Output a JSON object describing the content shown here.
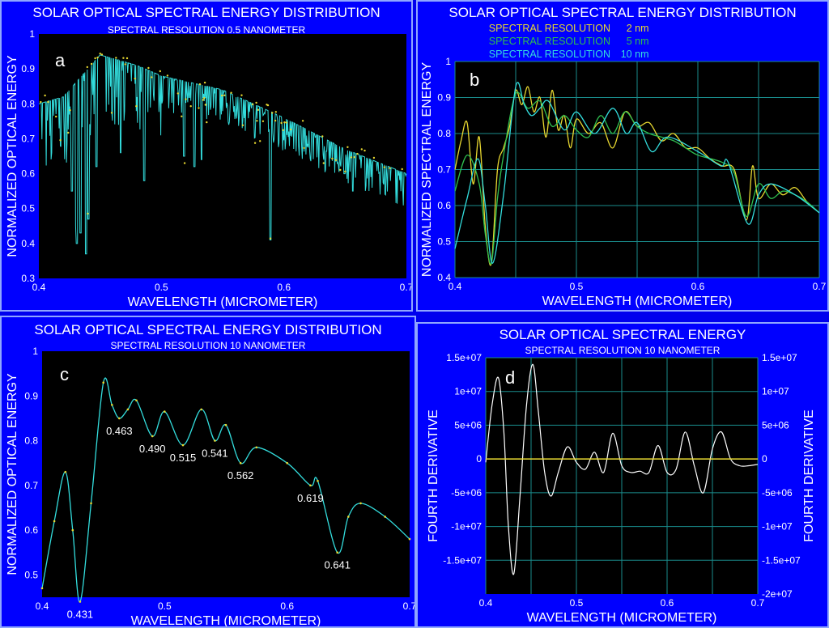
{
  "colors": {
    "background": "#0000ff",
    "plot_bg": "#000000",
    "grid": "#1a8d8d",
    "trace_cyan": "#33dddd",
    "trace_yellow": "#e8d830",
    "trace_green": "#2fbf4f",
    "trace_white": "#ffffff",
    "text": "#ffffff"
  },
  "panels": {
    "a": {
      "title": "SOLAR OPTICAL SPECTRAL ENERGY DISTRIBUTION",
      "subtitle": "SPECTRAL RESOLUTION 0.5 NANOMETER",
      "letter": "a"
    },
    "b": {
      "title": "SOLAR OPTICAL SPECTRAL ENERGY DISTRIBUTION",
      "subtitle": "",
      "letter": "b",
      "legend": [
        {
          "name": "SPECTRAL RESOLUTION",
          "res": "2 nm",
          "color": "#e8d830"
        },
        {
          "name": "SPECTRAL RESOLUTION",
          "res": "5 nm",
          "color": "#2fbf4f"
        },
        {
          "name": "SPECTRAL RESOLUTION",
          "res": "10 nm",
          "color": "#33dddd"
        }
      ]
    },
    "c": {
      "title": "SOLAR OPTICAL SPECTRAL ENERGY DISTRIBUTION",
      "subtitle": "SPECTRAL RESOLUTION 10 NANOMETER",
      "letter": "c"
    },
    "d": {
      "title": "SOLAR OPTICAL SPECTRAL ENERGY",
      "subtitle": "SPECTRAL RESOLUTION 10 NANOMETER",
      "letter": "d"
    }
  },
  "chart_data": [
    {
      "id": "a",
      "type": "line",
      "title": "SOLAR OPTICAL SPECTRAL ENERGY DISTRIBUTION",
      "subtitle": "SPECTRAL RESOLUTION 0.5 NANOMETER",
      "xlabel": "WAVELENGTH (MICROMETER)",
      "ylabel": "NORMALIZED OPTICAL ENERGY",
      "xlim": [
        0.4,
        0.7
      ],
      "ylim": [
        0.3,
        1.0
      ],
      "xticks": [
        "0.4",
        "0.5",
        "0.6",
        "0.7"
      ],
      "yticks": [
        "0.3",
        "0.4",
        "0.5",
        "0.6",
        "0.7",
        "0.8",
        "0.9",
        "1"
      ],
      "grid": false,
      "series": [
        {
          "color": "#33dddd",
          "envelope": [
            [
              0.4,
              0.8
            ],
            [
              0.42,
              0.82
            ],
            [
              0.44,
              0.9
            ],
            [
              0.45,
              0.94
            ],
            [
              0.46,
              0.93
            ],
            [
              0.48,
              0.91
            ],
            [
              0.5,
              0.88
            ],
            [
              0.55,
              0.84
            ],
            [
              0.6,
              0.76
            ],
            [
              0.65,
              0.67
            ],
            [
              0.7,
              0.6
            ]
          ],
          "absorption_lines": [
            [
              0.431,
              0.4
            ],
            [
              0.434,
              0.43
            ],
            [
              0.4385,
              0.37
            ],
            [
              0.4405,
              0.47
            ],
            [
              0.427,
              0.55
            ],
            [
              0.4305,
              0.45
            ],
            [
              0.486,
              0.58
            ],
            [
              0.4471,
              0.62
            ],
            [
              0.4668,
              0.66
            ],
            [
              0.5184,
              0.65
            ],
            [
              0.527,
              0.62
            ],
            [
              0.5328,
              0.64
            ],
            [
              0.589,
              0.41
            ],
            [
              0.6563,
              0.55
            ],
            [
              0.6495,
              0.61
            ],
            [
              0.6495,
              0.6
            ]
          ]
        }
      ]
    },
    {
      "id": "b",
      "type": "line",
      "title": "SOLAR OPTICAL SPECTRAL ENERGY DISTRIBUTION",
      "xlabel": "WAVELENGTH (MICROMETER)",
      "ylabel": "NORMALIZED SPECTRAL ENERGY",
      "xlim": [
        0.4,
        0.7
      ],
      "ylim": [
        0.4,
        1.0
      ],
      "xticks": [
        "0.4",
        "0.5",
        "0.6",
        "0.7"
      ],
      "yticks": [
        "0.4",
        "0.5",
        "0.6",
        "0.7",
        "0.8",
        "0.9",
        "1"
      ],
      "grid": true,
      "legend": "top",
      "series": [
        {
          "name": "SPECTRAL RESOLUTION 2 nm",
          "color": "#e8d830",
          "x": [
            0.4,
            0.405,
            0.41,
            0.415,
            0.42,
            0.425,
            0.43,
            0.435,
            0.44,
            0.445,
            0.45,
            0.455,
            0.46,
            0.465,
            0.47,
            0.475,
            0.48,
            0.485,
            0.49,
            0.495,
            0.5,
            0.51,
            0.52,
            0.53,
            0.54,
            0.55,
            0.56,
            0.57,
            0.58,
            0.59,
            0.6,
            0.61,
            0.62,
            0.63,
            0.64,
            0.645,
            0.65,
            0.66,
            0.67,
            0.68,
            0.69,
            0.7
          ],
          "y": [
            0.7,
            0.78,
            0.83,
            0.66,
            0.79,
            0.54,
            0.44,
            0.7,
            0.76,
            0.82,
            0.92,
            0.88,
            0.93,
            0.86,
            0.9,
            0.79,
            0.92,
            0.81,
            0.85,
            0.76,
            0.84,
            0.8,
            0.83,
            0.76,
            0.86,
            0.82,
            0.83,
            0.78,
            0.8,
            0.76,
            0.76,
            0.73,
            0.71,
            0.7,
            0.56,
            0.71,
            0.62,
            0.66,
            0.63,
            0.65,
            0.61,
            0.58
          ]
        },
        {
          "name": "SPECTRAL RESOLUTION 5 nm",
          "color": "#2fbf4f",
          "x": [
            0.4,
            0.41,
            0.42,
            0.425,
            0.43,
            0.435,
            0.44,
            0.45,
            0.46,
            0.47,
            0.48,
            0.49,
            0.5,
            0.51,
            0.52,
            0.53,
            0.54,
            0.55,
            0.56,
            0.57,
            0.58,
            0.59,
            0.6,
            0.62,
            0.63,
            0.64,
            0.65,
            0.66,
            0.67,
            0.68,
            0.69,
            0.7
          ],
          "y": [
            0.64,
            0.74,
            0.66,
            0.52,
            0.44,
            0.62,
            0.74,
            0.91,
            0.87,
            0.89,
            0.82,
            0.85,
            0.81,
            0.79,
            0.85,
            0.8,
            0.86,
            0.82,
            0.8,
            0.79,
            0.78,
            0.76,
            0.74,
            0.72,
            0.69,
            0.57,
            0.66,
            0.62,
            0.64,
            0.63,
            0.61,
            0.58
          ]
        },
        {
          "name": "SPECTRAL RESOLUTION 10 nm",
          "color": "#33dddd",
          "x": [
            0.4,
            0.41,
            0.419,
            0.425,
            0.431,
            0.44,
            0.45,
            0.457,
            0.463,
            0.47,
            0.477,
            0.49,
            0.5,
            0.515,
            0.53,
            0.541,
            0.55,
            0.562,
            0.575,
            0.6,
            0.619,
            0.625,
            0.641,
            0.65,
            0.66,
            0.68,
            0.7
          ],
          "y": [
            0.48,
            0.62,
            0.73,
            0.6,
            0.44,
            0.63,
            0.93,
            0.88,
            0.85,
            0.87,
            0.89,
            0.81,
            0.86,
            0.8,
            0.87,
            0.8,
            0.83,
            0.75,
            0.79,
            0.75,
            0.71,
            0.72,
            0.55,
            0.63,
            0.66,
            0.63,
            0.58
          ]
        }
      ]
    },
    {
      "id": "c",
      "type": "line",
      "title": "SOLAR OPTICAL SPECTRAL ENERGY DISTRIBUTION",
      "subtitle": "SPECTRAL RESOLUTION 10 NANOMETER",
      "xlabel": "WAVELENGTH (MICROMETER)",
      "ylabel": "NORMALIZED OPTICAL ENERGY",
      "xlim": [
        0.4,
        0.7
      ],
      "ylim": [
        0.45,
        1.0
      ],
      "xticks": [
        "0.4",
        "0.5",
        "0.6",
        "0.7"
      ],
      "yticks": [
        "0.5",
        "0.6",
        "0.7",
        "0.8",
        "0.9",
        "1"
      ],
      "grid": false,
      "series": [
        {
          "color": "#33dddd",
          "x": [
            0.4,
            0.41,
            0.419,
            0.425,
            0.431,
            0.44,
            0.45,
            0.457,
            0.463,
            0.47,
            0.477,
            0.49,
            0.5,
            0.515,
            0.53,
            0.541,
            0.55,
            0.562,
            0.575,
            0.6,
            0.619,
            0.625,
            0.641,
            0.65,
            0.66,
            0.68,
            0.7
          ],
          "y": [
            0.47,
            0.62,
            0.73,
            0.6,
            0.44,
            0.66,
            0.93,
            0.88,
            0.85,
            0.87,
            0.89,
            0.81,
            0.865,
            0.79,
            0.87,
            0.8,
            0.835,
            0.75,
            0.785,
            0.75,
            0.7,
            0.71,
            0.55,
            0.63,
            0.66,
            0.63,
            0.58
          ]
        }
      ],
      "annotations": [
        {
          "label": "0.431",
          "x": 0.431,
          "y": 0.44
        },
        {
          "label": "0.463",
          "x": 0.463,
          "y": 0.85
        },
        {
          "label": "0.490",
          "x": 0.49,
          "y": 0.81
        },
        {
          "label": "0.515",
          "x": 0.515,
          "y": 0.79
        },
        {
          "label": "0.541",
          "x": 0.541,
          "y": 0.8
        },
        {
          "label": "0.562",
          "x": 0.562,
          "y": 0.75
        },
        {
          "label": "0.619",
          "x": 0.619,
          "y": 0.7
        },
        {
          "label": "0.641",
          "x": 0.641,
          "y": 0.55
        }
      ]
    },
    {
      "id": "d",
      "type": "line",
      "title": "SOLAR OPTICAL SPECTRAL ENERGY",
      "subtitle": "SPECTRAL RESOLUTION 10 NANOMETER",
      "xlabel": "WAVELENGTH (MICROMETER)",
      "ylabel": "FOURTH DERIVATIVE",
      "ylabel_right": "FOURTH DERIVATIVE",
      "xlim": [
        0.4,
        0.7
      ],
      "ylim": [
        -20000000,
        15000000
      ],
      "xticks": [
        "0.4",
        "0.5",
        "0.6",
        "0.7"
      ],
      "yticks": [
        "-2e+07",
        "-1.5e+07",
        "-1e+07",
        "-5e+06",
        "0",
        "5e+06",
        "1e+07",
        "1.5e+07"
      ],
      "yticks_left": [
        "-1.5e+07",
        "-1e+07",
        "-5e+06",
        "0",
        "5e+06",
        "1e+07",
        "1.5e+07"
      ],
      "grid": true,
      "series": [
        {
          "color": "#ffffff",
          "x": [
            0.4,
            0.407,
            0.414,
            0.42,
            0.425,
            0.431,
            0.438,
            0.445,
            0.452,
            0.458,
            0.465,
            0.472,
            0.48,
            0.49,
            0.5,
            0.51,
            0.52,
            0.53,
            0.54,
            0.55,
            0.56,
            0.57,
            0.58,
            0.59,
            0.6,
            0.61,
            0.62,
            0.63,
            0.64,
            0.65,
            0.66,
            0.67,
            0.68,
            0.69,
            0.7
          ],
          "y": [
            -500000,
            8000000,
            12000000,
            4000000,
            -10000000,
            -17000000,
            -5000000,
            8000000,
            14000000,
            7000000,
            -2000000,
            -5500000,
            -2000000,
            1800000,
            -500000,
            -1500000,
            1000000,
            -2000000,
            3800000,
            -1000000,
            -2000000,
            -1800000,
            -2000000,
            2000000,
            -2000000,
            -1500000,
            4000000,
            -1000000,
            -5000000,
            1500000,
            4000000,
            0,
            -1000000,
            -1000000,
            -800000
          ]
        },
        {
          "color": "#e8d830",
          "x": [
            0.4,
            0.7
          ],
          "y": [
            0,
            0
          ]
        }
      ]
    }
  ]
}
